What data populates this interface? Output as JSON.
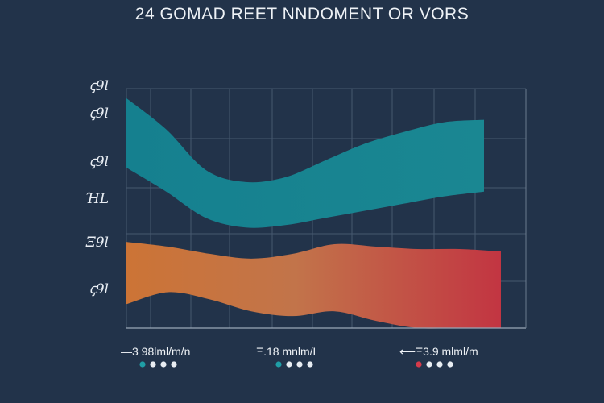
{
  "title": "24 GOMAD REET NNDOMENT OR VORS",
  "chart_data": {
    "type": "area",
    "title": "24 GOMAD REET NNDOMENT OR VORS",
    "xlabel": "",
    "ylabel": "",
    "grid": true,
    "ytick_labels": [
      "ꞔ9l",
      "ꞔ9l",
      "ꞔ9l",
      "ΉL",
      "Ξ9l",
      "ꞔ9l"
    ],
    "x": [
      0,
      1,
      2,
      3,
      4,
      5,
      6,
      7,
      8,
      9
    ],
    "series": [
      {
        "color": "#1f8c98",
        "upper": [
          0.96,
          0.83,
          0.66,
          0.61,
          0.63,
          0.7,
          0.77,
          0.82,
          0.86,
          0.87
        ],
        "lower": [
          0.67,
          0.57,
          0.46,
          0.42,
          0.43,
          0.46,
          0.49,
          0.52,
          0.55,
          0.57
        ]
      },
      {
        "color": "#c9763a",
        "color_end": "#c23a44",
        "upper": [
          0.36,
          0.34,
          0.31,
          0.29,
          0.31,
          0.35,
          0.34,
          0.33,
          0.33,
          0.32
        ],
        "lower": [
          0.1,
          0.15,
          0.12,
          0.07,
          0.05,
          0.07,
          0.03,
          0.0,
          0.0,
          0.0
        ]
      }
    ],
    "legend": [
      {
        "label": "—3 98lml/m/n",
        "color": "#1f9ea6"
      },
      {
        "label": "Ξ.18 mnlm/L",
        "color": "#1f9ea6"
      },
      {
        "label": "⟵Ξ3.9 mlml/m",
        "color": "#d63a4a"
      }
    ],
    "legend_dot_color": "#e8edf2"
  }
}
